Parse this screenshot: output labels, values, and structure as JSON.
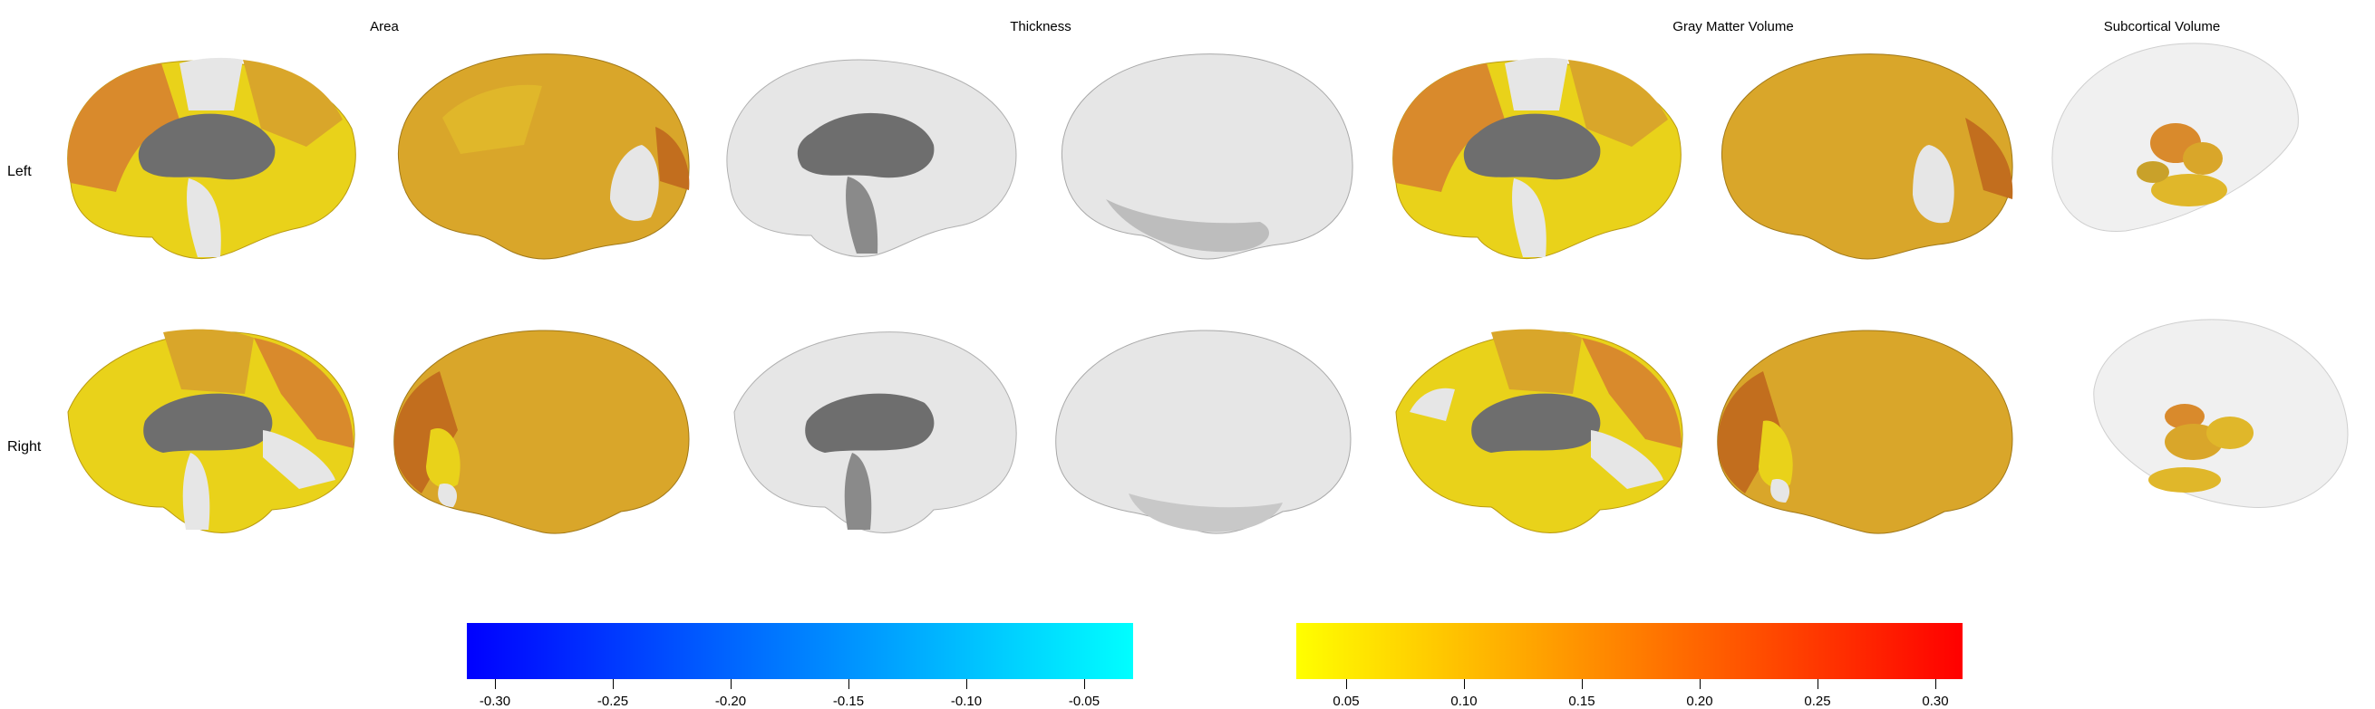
{
  "columns": [
    {
      "title": "Area"
    },
    {
      "title": "Thickness"
    },
    {
      "title": "Gray Matter Volume"
    },
    {
      "title": "Subcortical Volume"
    }
  ],
  "rows": [
    {
      "label": "Left"
    },
    {
      "label": "Right"
    }
  ],
  "colors": {
    "cortex_gray": "#e6e6e6",
    "medial_wall": "#6e6e6e",
    "yellow": "#e9d21a",
    "gold": "#d9a62a",
    "orange": "#d98a2c",
    "dark_orange": "#c26e1e"
  },
  "negative_colorbar": {
    "color_stops": [
      "#0000ff",
      "#00ffff"
    ],
    "ticks": [
      "-0.30",
      "-0.25",
      "-0.20",
      "-0.15",
      "-0.10",
      "-0.05"
    ]
  },
  "positive_colorbar": {
    "color_stops": [
      "#ffff00",
      "#ff0000"
    ],
    "ticks": [
      "0.05",
      "0.10",
      "0.15",
      "0.20",
      "0.25",
      "0.30"
    ]
  }
}
